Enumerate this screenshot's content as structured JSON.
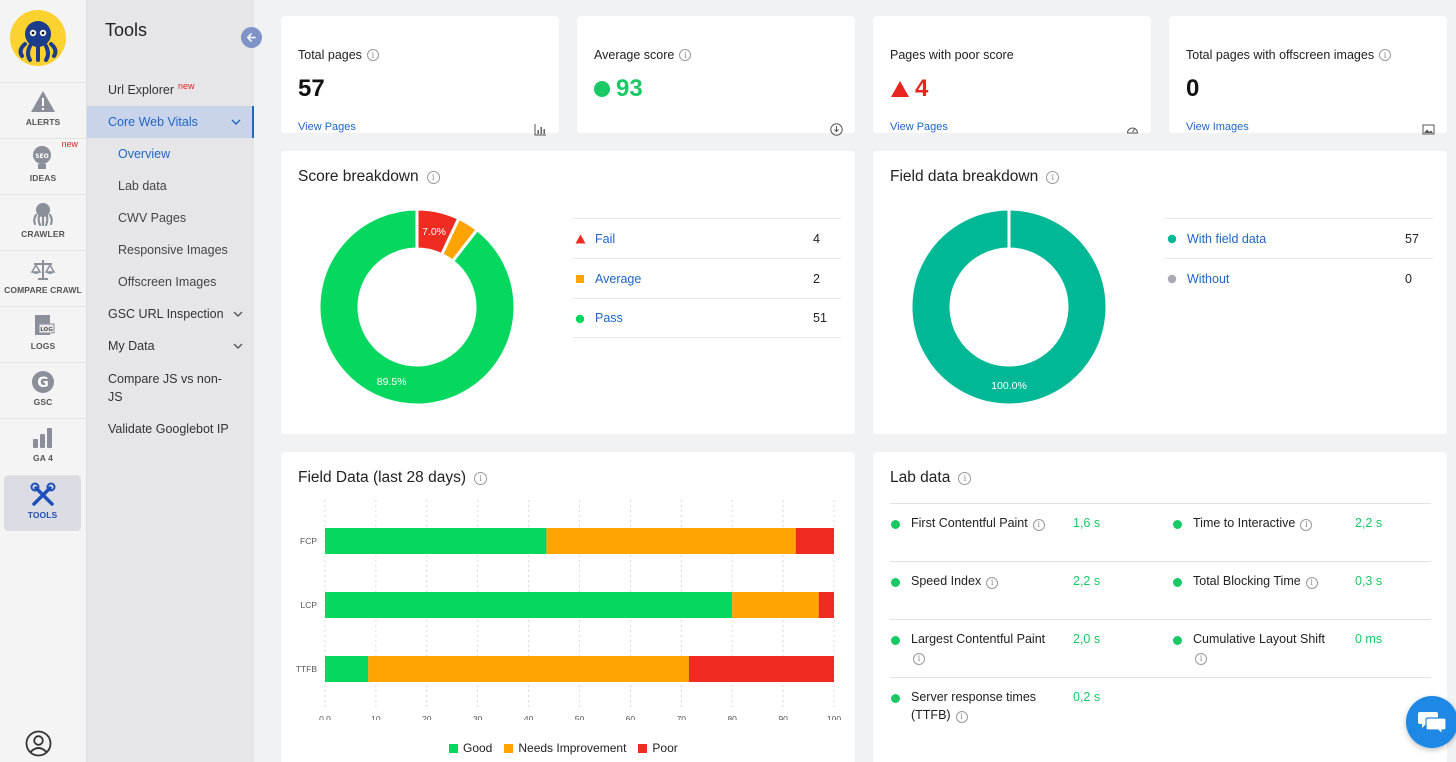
{
  "rail": {
    "items": [
      {
        "label": "ALERTS",
        "icon": "warning-icon"
      },
      {
        "label": "IDEAS",
        "icon": "lightbulb-seo-icon",
        "badge": "new"
      },
      {
        "label": "CRAWLER",
        "icon": "octopus-icon"
      },
      {
        "label": "COMPARE CRAWL",
        "icon": "scale-icon"
      },
      {
        "label": "LOGS",
        "icon": "log-file-icon"
      },
      {
        "label": "GSC",
        "icon": "google-icon"
      },
      {
        "label": "GA 4",
        "icon": "bar-chart-icon"
      },
      {
        "label": "TOOLS",
        "icon": "tools-icon"
      }
    ]
  },
  "menu": {
    "title": "Tools",
    "url_explorer": "Url Explorer",
    "url_explorer_badge": "new",
    "core_web_vitals": "Core Web Vitals",
    "overview": "Overview",
    "lab_data": "Lab data",
    "cwv_pages": "CWV Pages",
    "responsive_images": "Responsive Images",
    "offscreen_images": "Offscreen Images",
    "gsc_url_inspection": "GSC URL Inspection",
    "my_data": "My Data",
    "compare_js": "Compare JS vs non-JS",
    "validate_googlebot": "Validate Googlebot IP"
  },
  "stats": {
    "total_pages": {
      "label": "Total pages",
      "value": "57",
      "link": "View Pages"
    },
    "average_score": {
      "label": "Average score",
      "value": "93"
    },
    "poor_score": {
      "label": "Pages with poor score",
      "value": "4",
      "link": "View Pages"
    },
    "offscreen": {
      "label": "Total pages with offscreen images",
      "value": "0",
      "link": "View Images"
    }
  },
  "score_breakdown": {
    "title": "Score breakdown",
    "rows": [
      {
        "name": "Fail",
        "count": "4"
      },
      {
        "name": "Average",
        "count": "2"
      },
      {
        "name": "Pass",
        "count": "51"
      }
    ],
    "label_fail": "7.0%",
    "label_pass": "89.5%"
  },
  "field_breakdown": {
    "title": "Field data breakdown",
    "rows": [
      {
        "name": "With field data",
        "count": "57"
      },
      {
        "name": "Without",
        "count": "0"
      }
    ],
    "label_with": "100.0%"
  },
  "field_data": {
    "title": "Field Data (last 28 days)",
    "legend": {
      "good": "Good",
      "needs": "Needs Improvement",
      "poor": "Poor"
    }
  },
  "lab": {
    "title": "Lab data",
    "fcp": {
      "label": "First Contentful Paint",
      "value": "1,6 s"
    },
    "tti": {
      "label": "Time to Interactive",
      "value": "2,2 s"
    },
    "si": {
      "label": "Speed Index",
      "value": "2,2 s"
    },
    "tbt": {
      "label": "Total Blocking Time",
      "value": "0,3 s"
    },
    "lcp": {
      "label": "Largest Contentful Paint",
      "value": "2,0 s"
    },
    "cls": {
      "label": "Cumulative Layout Shift",
      "value": "0 ms"
    },
    "srt": {
      "label": "Server response times (TTFB)",
      "value": "0,2 s"
    }
  },
  "colors": {
    "good": "#06d85f",
    "average": "#ffa400",
    "poor": "#f02c20",
    "teal": "#00b896",
    "link": "#1f66c7"
  },
  "chart_data": [
    {
      "type": "pie",
      "title": "Score breakdown",
      "categories": [
        "Fail",
        "Average",
        "Pass"
      ],
      "values": [
        4,
        2,
        51
      ],
      "percent_labels": [
        "7.0%",
        "",
        "89.5%"
      ]
    },
    {
      "type": "pie",
      "title": "Field data breakdown",
      "categories": [
        "With field data",
        "Without"
      ],
      "values": [
        57,
        0
      ],
      "percent_labels": [
        "100.0%",
        ""
      ]
    },
    {
      "type": "bar",
      "orientation": "horizontal-stacked",
      "title": "Field Data (last 28 days)",
      "categories": [
        "FCP",
        "LCP",
        "TTFB"
      ],
      "series": [
        {
          "name": "Good",
          "values": [
            43.5,
            80,
            8.5
          ]
        },
        {
          "name": "Needs Improvement",
          "values": [
            49,
            17,
            63
          ]
        },
        {
          "name": "Poor",
          "values": [
            7.5,
            3,
            28.5
          ]
        }
      ],
      "xlim": [
        0,
        100
      ],
      "xticks": [
        "0.0",
        "10",
        "20",
        "30",
        "40",
        "50",
        "60",
        "70",
        "80",
        "90",
        "100"
      ],
      "grid": true,
      "legend": "bottom"
    }
  ]
}
